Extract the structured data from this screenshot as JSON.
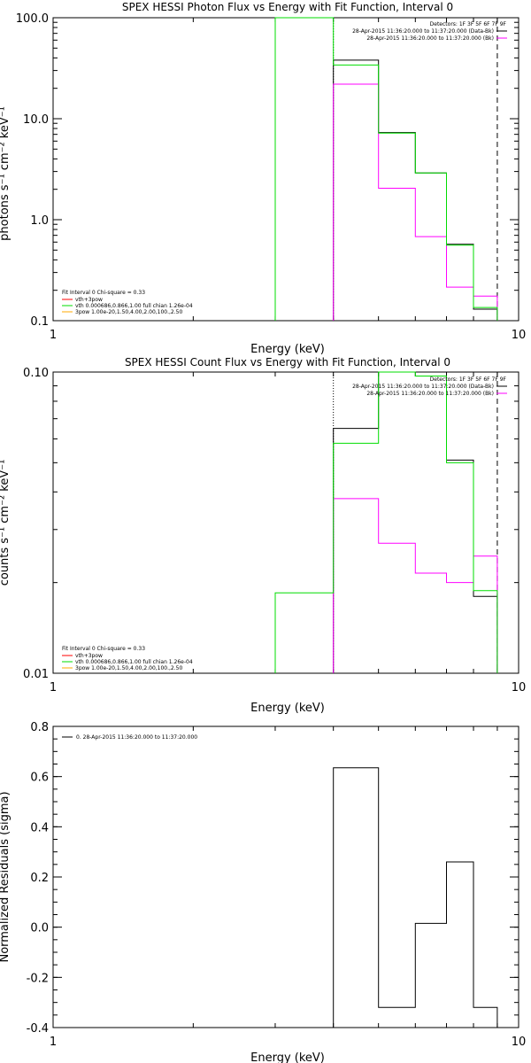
{
  "chart_data": [
    {
      "type": "line",
      "title": "SPEX HESSI Photon Flux vs Energy with Fit Function, Interval 0",
      "xlabel": "Energy (keV)",
      "ylabel": "photons s⁻¹ cm⁻² keV⁻¹",
      "xscale": "log",
      "yscale": "log",
      "xlim": [
        1,
        10
      ],
      "ylim": [
        0.1,
        100
      ],
      "x_tick_labels": [
        "1",
        "10"
      ],
      "y_tick_labels": [
        "0.1",
        "1.0",
        "10.0",
        "100.0"
      ],
      "legend_top_right": {
        "detectors": "Detectors: 1F 3F 5F 6F 7F 9F",
        "entries": [
          {
            "text": "28-Apr-2015 11:36:20.000 to 11:37:20.000 (Data-Bk)",
            "color": "#000000"
          },
          {
            "text": "28-Apr-2015 11:36:20.000 to 11:37:20.000 (Bk)",
            "color": "#ff00ff"
          }
        ]
      },
      "legend_bottom_left": {
        "header": "Fit Interval 0   Chi-square = 0.33",
        "entries": [
          {
            "text": "vth+3pow",
            "color": "#ff0000"
          },
          {
            "text": "vth 0.000686,0.866,1.00  full chian 1.26e-04",
            "color": "#00dd00"
          },
          {
            "text": "3pow 1.00e-20,1.50,4.00,2.00,100.,2.50",
            "color": "#ffaa00"
          }
        ]
      },
      "fit_range_keV": [
        4.0,
        9.0
      ],
      "series": [
        {
          "label": "data-bk",
          "color": "#000000",
          "edges": [
            4.0,
            5.0,
            6.0,
            7.0,
            8.0,
            9.0
          ],
          "values": [
            38,
            7.3,
            2.9,
            0.57,
            0.13
          ]
        },
        {
          "label": "bk",
          "color": "#ff00ff",
          "edges": [
            4.0,
            5.0,
            6.0,
            7.0,
            8.0,
            9.0
          ],
          "values": [
            22,
            2.05,
            0.68,
            0.215,
            0.175
          ]
        },
        {
          "label": "model",
          "color": "#00dd00",
          "edges": [
            3.0,
            4.0,
            5.0,
            6.0,
            7.0,
            8.0,
            9.0
          ],
          "values": [
            100,
            34,
            7.2,
            2.9,
            0.56,
            0.135
          ]
        }
      ]
    },
    {
      "type": "line",
      "title": "SPEX HESSI Count Flux vs Energy with Fit Function, Interval 0",
      "xlabel": "Energy (keV)",
      "ylabel": "counts s⁻¹ cm⁻² keV⁻¹",
      "xscale": "log",
      "yscale": "log",
      "xlim": [
        1,
        10
      ],
      "ylim": [
        0.01,
        0.1
      ],
      "x_tick_labels": [
        "1",
        "10"
      ],
      "y_tick_labels": [
        "0.01",
        "0.10"
      ],
      "legend_top_right": {
        "detectors": "Detectors: 1F 3F 5F 6F 7F 9F",
        "entries": [
          {
            "text": "28-Apr-2015 11:36:20.000 to 11:37:20.000 (Data-Bk)",
            "color": "#000000"
          },
          {
            "text": "28-Apr-2015 11:36:20.000 to 11:37:20.000 (Bk)",
            "color": "#ff00ff"
          }
        ]
      },
      "legend_bottom_left": {
        "header": "Fit Interval 0   Chi-square = 0.33",
        "entries": [
          {
            "text": "vth+3pow",
            "color": "#ff0000"
          },
          {
            "text": "vth 0.000686,0.866,1.00  full chian 1.26e-04",
            "color": "#00dd00"
          },
          {
            "text": "3pow 1.00e-20,1.50,4.00,2.00,100.,2.50",
            "color": "#ffaa00"
          }
        ]
      },
      "fit_range_keV": [
        4.0,
        9.0
      ],
      "series": [
        {
          "label": "data-bk",
          "color": "#000000",
          "edges": [
            4.0,
            5.0,
            6.0,
            7.0,
            8.0,
            9.0
          ],
          "values": [
            0.065,
            0.1,
            0.1,
            0.051,
            0.018
          ]
        },
        {
          "label": "bk",
          "color": "#ff00ff",
          "edges": [
            4.0,
            5.0,
            6.0,
            7.0,
            8.0,
            9.0
          ],
          "values": [
            0.038,
            0.027,
            0.0215,
            0.02,
            0.0245
          ]
        },
        {
          "label": "model",
          "color": "#00dd00",
          "edges": [
            3.0,
            4.0,
            5.0,
            6.0,
            7.0,
            8.0,
            9.0
          ],
          "values": [
            0.0185,
            0.058,
            0.1,
            0.097,
            0.05,
            0.0188
          ]
        }
      ]
    },
    {
      "type": "line",
      "title": "",
      "xlabel": "Energy (keV)",
      "ylabel": "Normalized Residuals (sigma)",
      "xscale": "log",
      "yscale": "linear",
      "xlim": [
        1,
        10
      ],
      "ylim": [
        -0.4,
        0.8
      ],
      "x_tick_labels": [
        "1",
        "10"
      ],
      "y_tick_labels": [
        "-0.4",
        "-0.2",
        "0.0",
        "0.2",
        "0.4",
        "0.6",
        "0.8"
      ],
      "legend_top_left": {
        "entries": [
          {
            "text": "0. 28-Apr-2015 11:36:20.000 to 11:37:20.000",
            "color": "#000000"
          }
        ]
      },
      "series": [
        {
          "label": "residuals",
          "color": "#000000",
          "edges": [
            4.0,
            5.0,
            6.0,
            7.0,
            8.0,
            9.0
          ],
          "values": [
            0.635,
            -0.32,
            0.015,
            0.26,
            -0.32
          ]
        }
      ]
    }
  ]
}
